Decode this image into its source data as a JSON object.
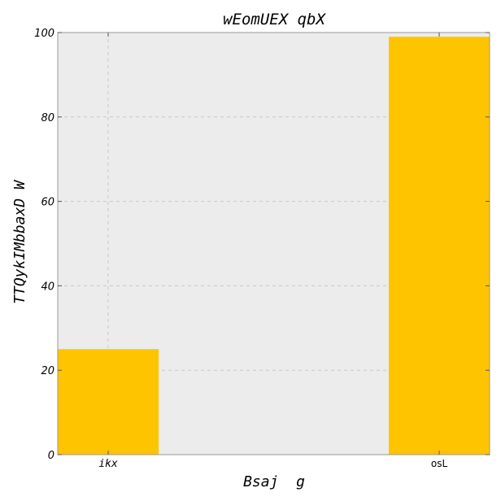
{
  "chart_data": {
    "type": "bar",
    "title": "wEomUEX qbX",
    "xlabel": "Bsaj  g",
    "ylabel": "TTQykIMbbaxD W",
    "categories": [
      "ikx",
      "osL"
    ],
    "values": [
      25,
      99
    ],
    "ylim": [
      0,
      100
    ],
    "yticks": [
      0,
      20,
      40,
      60,
      80,
      100
    ],
    "grid": true,
    "bar_color": "#ffc400",
    "plot_background": "#ececec"
  }
}
